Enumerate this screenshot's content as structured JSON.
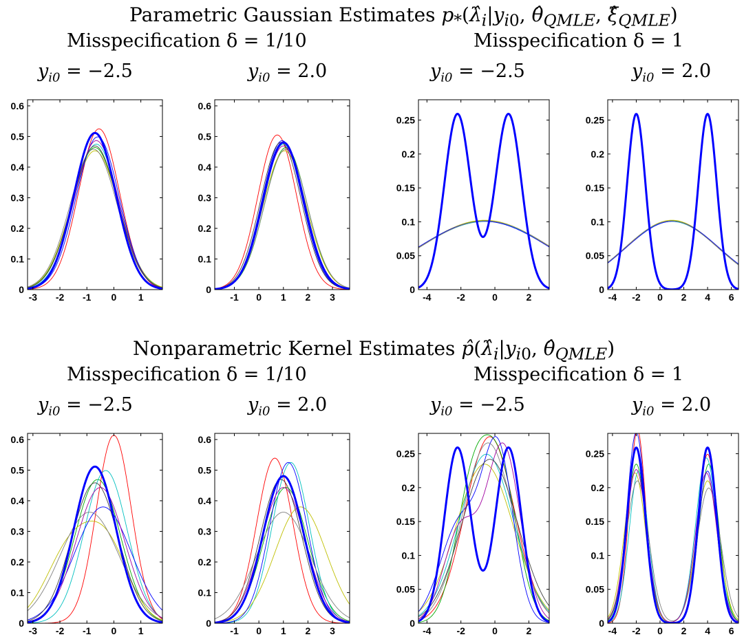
{
  "headings": {
    "top": "Parametric Gaussian Estimates p_*(λ̂_i|y_i0, θ̂_QMLE, ξ̂_QMLE)",
    "bottom": "Nonparametric Kernel Estimates p̂(λ̂_i|y_i0, θ̂_QMLE)",
    "misspec_small": "Misspecification δ = 1/10",
    "misspec_large": "Misspecification δ = 1",
    "y_neg": "y_i0 = −2.5",
    "y_pos": "y_i0 = 2.0"
  },
  "colors": {
    "true_density": "#0000ff",
    "estimates": [
      "#ff0000",
      "#00aa00",
      "#00bfbf",
      "#bfbf00",
      "#0000ff",
      "#808080",
      "#a000a0",
      "#404040",
      "#ff8000",
      "#2e8b57"
    ]
  },
  "chart_data": [
    {
      "type": "line",
      "section": "parametric",
      "misspecification": "1/10",
      "y_i0": "-2.5",
      "xlim": [
        -3.2,
        1.8
      ],
      "ylim": [
        0,
        0.62
      ],
      "xticks": [
        "-3",
        "-2",
        "-1",
        "0",
        "1"
      ],
      "yticks": [
        "0",
        "0.1",
        "0.2",
        "0.3",
        "0.4",
        "0.5",
        "0.6"
      ],
      "true_density": {
        "kind": "normal",
        "mean": -0.7,
        "sd": 0.78
      },
      "estimates": [
        {
          "mean": -0.55,
          "sd": 0.76
        },
        {
          "mean": -0.7,
          "sd": 0.86
        },
        {
          "mean": -0.65,
          "sd": 0.84
        },
        {
          "mean": -0.7,
          "sd": 0.88
        },
        {
          "mean": -0.6,
          "sd": 0.8
        },
        {
          "mean": -0.75,
          "sd": 0.87
        },
        {
          "mean": -0.65,
          "sd": 0.82
        },
        {
          "mean": -0.7,
          "sd": 0.85
        }
      ]
    },
    {
      "type": "line",
      "section": "parametric",
      "misspecification": "1/10",
      "y_i0": "2.0",
      "xlim": [
        -1.8,
        3.7
      ],
      "ylim": [
        0,
        0.62
      ],
      "xticks": [
        "-1",
        "0",
        "1",
        "2",
        "3"
      ],
      "yticks": [
        "0",
        "0.1",
        "0.2",
        "0.3",
        "0.4",
        "0.5",
        "0.6"
      ],
      "true_density": {
        "kind": "normal",
        "mean": 1.0,
        "sd": 0.83
      },
      "estimates": [
        {
          "mean": 0.75,
          "sd": 0.79
        },
        {
          "mean": 1.1,
          "sd": 0.86
        },
        {
          "mean": 1.0,
          "sd": 0.84
        },
        {
          "mean": 1.05,
          "sd": 0.88
        },
        {
          "mean": 0.95,
          "sd": 0.82
        },
        {
          "mean": 1.1,
          "sd": 0.87
        },
        {
          "mean": 1.0,
          "sd": 0.85
        },
        {
          "mean": 0.9,
          "sd": 0.83
        }
      ]
    },
    {
      "type": "line",
      "section": "parametric",
      "misspecification": "1",
      "y_i0": "-2.5",
      "xlim": [
        -4.5,
        3.2
      ],
      "ylim": [
        0,
        0.28
      ],
      "xticks": [
        "-4",
        "-2",
        "0",
        "2"
      ],
      "yticks": [
        "0",
        "0.05",
        "0.1",
        "0.15",
        "0.2",
        "0.25"
      ],
      "true_density": {
        "kind": "mixture",
        "means": [
          -2.2,
          0.8
        ],
        "sd": 0.77
      },
      "estimates": [
        {
          "mean": -0.6,
          "sd": 3.95
        },
        {
          "mean": -0.62,
          "sd": 3.93
        },
        {
          "mean": -0.58,
          "sd": 3.97
        },
        {
          "mean": -0.6,
          "sd": 3.9
        },
        {
          "mean": -0.65,
          "sd": 3.96
        },
        {
          "mean": -0.55,
          "sd": 3.94
        }
      ]
    },
    {
      "type": "line",
      "section": "parametric",
      "misspecification": "1",
      "y_i0": "2.0",
      "xlim": [
        -4.4,
        6.6
      ],
      "ylim": [
        0,
        0.28
      ],
      "xticks": [
        "-4",
        "-2",
        "0",
        "2",
        "4",
        "6"
      ],
      "yticks": [
        "0",
        "0.05",
        "0.1",
        "0.15",
        "0.2",
        "0.25"
      ],
      "true_density": {
        "kind": "mixture",
        "means": [
          -2.0,
          4.0
        ],
        "sd": 0.77
      },
      "estimates": [
        {
          "mean": 1.0,
          "sd": 3.95
        },
        {
          "mean": 1.02,
          "sd": 3.93
        },
        {
          "mean": 0.98,
          "sd": 3.97
        },
        {
          "mean": 1.0,
          "sd": 3.9
        },
        {
          "mean": 1.05,
          "sd": 3.96
        },
        {
          "mean": 0.95,
          "sd": 3.94
        }
      ]
    },
    {
      "type": "line",
      "section": "nonparametric",
      "misspecification": "1/10",
      "y_i0": "-2.5",
      "xlim": [
        -3.2,
        1.8
      ],
      "ylim": [
        0,
        0.62
      ],
      "xticks": [
        "-3",
        "-2",
        "-1",
        "0",
        "1"
      ],
      "yticks": [
        "0",
        "0.1",
        "0.2",
        "0.3",
        "0.4",
        "0.5",
        "0.6"
      ],
      "true_density": {
        "kind": "normal",
        "mean": -0.7,
        "sd": 0.78
      },
      "estimates": [
        {
          "comps": [
            {
              "w": 1,
              "m": 0.0,
              "s": 0.65
            }
          ]
        },
        {
          "comps": [
            {
              "w": 1,
              "m": -0.6,
              "s": 0.85
            }
          ]
        },
        {
          "comps": [
            {
              "w": 1,
              "m": -0.3,
              "s": 0.8
            }
          ]
        },
        {
          "comps": [
            {
              "w": 0.55,
              "m": -1.6,
              "s": 0.9
            },
            {
              "w": 0.45,
              "m": -0.2,
              "s": 0.8
            }
          ]
        },
        {
          "comps": [
            {
              "w": 1,
              "m": -0.4,
              "s": 1.05
            }
          ]
        },
        {
          "comps": [
            {
              "w": 1,
              "m": -0.9,
              "s": 1.1
            }
          ]
        },
        {
          "comps": [
            {
              "w": 1,
              "m": -0.5,
              "s": 0.9
            }
          ]
        },
        {
          "comps": [
            {
              "w": 1,
              "m": -0.7,
              "s": 0.87
            }
          ]
        }
      ]
    },
    {
      "type": "line",
      "section": "nonparametric",
      "misspecification": "1/10",
      "y_i0": "2.0",
      "xlim": [
        -1.8,
        3.7
      ],
      "ylim": [
        0,
        0.62
      ],
      "xticks": [
        "-1",
        "0",
        "1",
        "2",
        "3"
      ],
      "yticks": [
        "0",
        "0.1",
        "0.2",
        "0.3",
        "0.4",
        "0.5",
        "0.6"
      ],
      "true_density": {
        "kind": "normal",
        "mean": 1.0,
        "sd": 0.83
      },
      "estimates": [
        {
          "comps": [
            {
              "w": 1,
              "m": 0.65,
              "s": 0.74
            }
          ]
        },
        {
          "comps": [
            {
              "w": 1,
              "m": 1.1,
              "s": 0.9
            }
          ]
        },
        {
          "comps": [
            {
              "w": 1,
              "m": 1.3,
              "s": 0.76
            }
          ]
        },
        {
          "comps": [
            {
              "w": 1,
              "m": 1.7,
              "s": 1.05
            }
          ]
        },
        {
          "comps": [
            {
              "w": 1,
              "m": 1.2,
              "s": 0.76
            }
          ]
        },
        {
          "comps": [
            {
              "w": 1,
              "m": 1.0,
              "s": 1.1
            }
          ]
        },
        {
          "comps": [
            {
              "w": 1,
              "m": 1.0,
              "s": 0.9
            }
          ]
        },
        {
          "comps": [
            {
              "w": 1,
              "m": 0.9,
              "s": 0.85
            }
          ]
        }
      ]
    },
    {
      "type": "line",
      "section": "nonparametric",
      "misspecification": "1",
      "y_i0": "-2.5",
      "xlim": [
        -4.5,
        3.2
      ],
      "ylim": [
        0,
        0.28
      ],
      "xticks": [
        "-4",
        "-2",
        "0",
        "2"
      ],
      "yticks": [
        "0",
        "0.05",
        "0.1",
        "0.15",
        "0.2",
        "0.25"
      ],
      "true_density": {
        "kind": "mixture",
        "means": [
          -2.2,
          0.8
        ],
        "sd": 0.77
      },
      "estimates": [
        {
          "comps": [
            {
              "w": 1,
              "m": -0.3,
              "s": 1.45
            }
          ]
        },
        {
          "comps": [
            {
              "w": 0.5,
              "m": -1.3,
              "s": 1.0
            },
            {
              "w": 0.5,
              "m": 0.4,
              "s": 1.0
            }
          ]
        },
        {
          "comps": [
            {
              "w": 1,
              "m": -0.5,
              "s": 1.6
            }
          ]
        },
        {
          "comps": [
            {
              "w": 1,
              "m": -0.6,
              "s": 1.7
            }
          ]
        },
        {
          "comps": [
            {
              "w": 0.55,
              "m": 0.2,
              "s": 0.9
            },
            {
              "w": 0.45,
              "m": -2.0,
              "s": 1.2
            }
          ]
        },
        {
          "comps": [
            {
              "w": 1,
              "m": -0.4,
              "s": 1.5
            }
          ]
        },
        {
          "comps": [
            {
              "w": 0.35,
              "m": -2.0,
              "s": 1.0
            },
            {
              "w": 0.65,
              "m": 0.5,
              "s": 1.0
            }
          ]
        },
        {
          "comps": [
            {
              "w": 1,
              "m": -0.3,
              "s": 1.65
            }
          ]
        }
      ]
    },
    {
      "type": "line",
      "section": "nonparametric",
      "misspecification": "1",
      "y_i0": "2.0",
      "xlim": [
        -4.4,
        6.6
      ],
      "ylim": [
        0,
        0.28
      ],
      "xticks": [
        "-4",
        "-2",
        "0",
        "2",
        "4",
        "6"
      ],
      "yticks": [
        "0",
        "0.05",
        "0.1",
        "0.15",
        "0.2",
        "0.25"
      ],
      "true_density": {
        "kind": "mixture",
        "means": [
          -2.0,
          4.0
        ],
        "sd": 0.77
      },
      "estimates": [
        {
          "comps": [
            {
              "w": 0.5,
              "m": -1.9,
              "s": 0.7
            },
            {
              "w": 0.5,
              "m": 4.0,
              "s": 0.8
            }
          ]
        },
        {
          "comps": [
            {
              "w": 0.5,
              "m": -2.0,
              "s": 0.85
            },
            {
              "w": 0.5,
              "m": 4.1,
              "s": 0.85
            }
          ]
        },
        {
          "comps": [
            {
              "w": 0.45,
              "m": -1.8,
              "s": 0.8
            },
            {
              "w": 0.55,
              "m": 3.9,
              "s": 0.9
            }
          ]
        },
        {
          "comps": [
            {
              "w": 0.5,
              "m": -2.1,
              "s": 0.9
            },
            {
              "w": 0.5,
              "m": 4.0,
              "s": 0.95
            }
          ]
        },
        {
          "comps": [
            {
              "w": 0.55,
              "m": -2.0,
              "s": 0.78
            },
            {
              "w": 0.45,
              "m": 4.0,
              "s": 0.8
            }
          ]
        },
        {
          "comps": [
            {
              "w": 0.5,
              "m": -1.9,
              "s": 0.95
            },
            {
              "w": 0.5,
              "m": 4.1,
              "s": 1.0
            }
          ]
        },
        {
          "comps": [
            {
              "w": 0.5,
              "m": -2.0,
              "s": 0.88
            },
            {
              "w": 0.5,
              "m": 3.9,
              "s": 0.9
            }
          ]
        }
      ]
    }
  ]
}
